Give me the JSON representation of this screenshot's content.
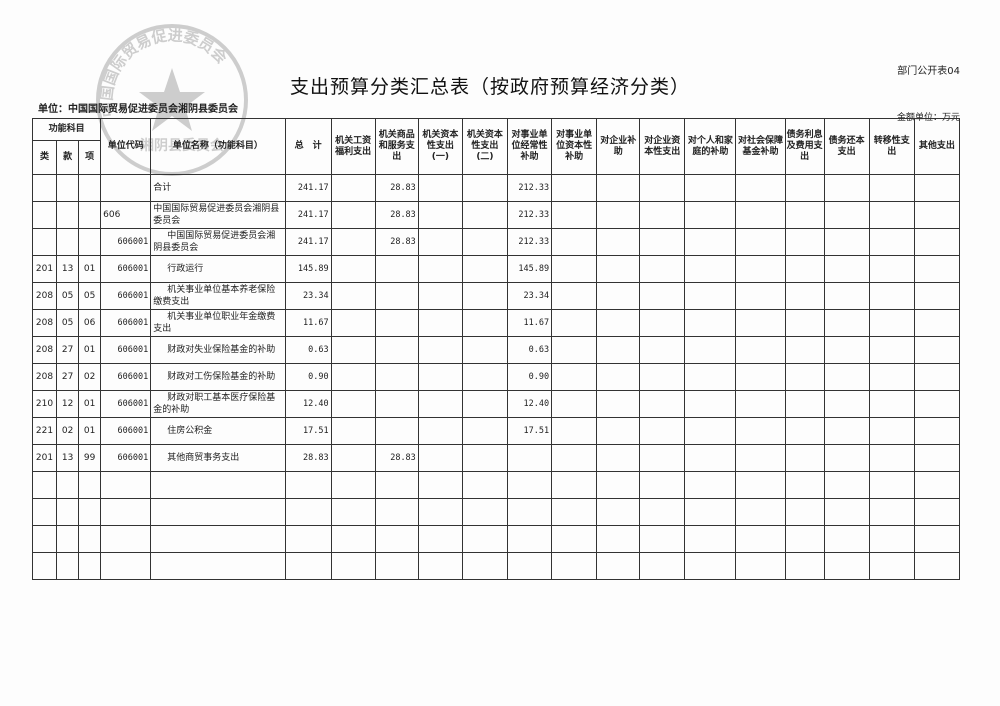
{
  "form_no": "部门公开表04",
  "title": "支出预算分类汇总表（按政府预算经济分类）",
  "unit": "单位：中国国际贸易促进委员会湘阴县委员会",
  "amount_unit": "金额单位：万元",
  "stamp": {
    "text": "中国国际贸易促进委员会湘阴县委员会",
    "color": "#777777"
  },
  "headers": {
    "func": "功能科目",
    "lei": "类",
    "kuan": "款",
    "xiang": "项",
    "code": "单位代码",
    "name": "单位名称（功能科目）",
    "total": "总　计",
    "cols": [
      "机关工资福利支出",
      "机关商品和服务支出",
      "机关资本性支出(一)",
      "机关资本性支出(二)",
      "对事业单位经常性补助",
      "对事业单位资本性补助",
      "对企业补助",
      "对企业资本性支出",
      "对个人和家庭的补助",
      "对社会保障基金补助",
      "债务利息及费用支出",
      "债务还本支出",
      "转移性支出",
      "其他支出"
    ]
  },
  "rows": [
    {
      "lei": "",
      "kuan": "",
      "xiang": "",
      "code": "",
      "name": "合计",
      "total": "241.17",
      "goods": "28.83",
      "shiye": "212.33"
    },
    {
      "lei": "",
      "kuan": "",
      "xiang": "",
      "code": "606",
      "name": "中国国际贸易促进委员会湘阴县委员会",
      "total": "241.17",
      "goods": "28.83",
      "shiye": "212.33"
    },
    {
      "lei": "",
      "kuan": "",
      "xiang": "",
      "code": "606001",
      "name": "中国国际贸易促进委员会湘阴县委员会",
      "total": "241.17",
      "goods": "28.83",
      "shiye": "212.33"
    },
    {
      "lei": "201",
      "kuan": "13",
      "xiang": "01",
      "code": "606001",
      "name": "行政运行",
      "total": "145.89",
      "goods": "",
      "shiye": "145.89"
    },
    {
      "lei": "208",
      "kuan": "05",
      "xiang": "05",
      "code": "606001",
      "name": "机关事业单位基本养老保险缴费支出",
      "total": "23.34",
      "goods": "",
      "shiye": "23.34"
    },
    {
      "lei": "208",
      "kuan": "05",
      "xiang": "06",
      "code": "606001",
      "name": "机关事业单位职业年金缴费支出",
      "total": "11.67",
      "goods": "",
      "shiye": "11.67"
    },
    {
      "lei": "208",
      "kuan": "27",
      "xiang": "01",
      "code": "606001",
      "name": "财政对失业保险基金的补助",
      "total": "0.63",
      "goods": "",
      "shiye": "0.63"
    },
    {
      "lei": "208",
      "kuan": "27",
      "xiang": "02",
      "code": "606001",
      "name": "财政对工伤保险基金的补助",
      "total": "0.90",
      "goods": "",
      "shiye": "0.90"
    },
    {
      "lei": "210",
      "kuan": "12",
      "xiang": "01",
      "code": "606001",
      "name": "财政对职工基本医疗保险基金的补助",
      "total": "12.40",
      "goods": "",
      "shiye": "12.40"
    },
    {
      "lei": "221",
      "kuan": "02",
      "xiang": "01",
      "code": "606001",
      "name": "住房公积金",
      "total": "17.51",
      "goods": "",
      "shiye": "17.51"
    },
    {
      "lei": "201",
      "kuan": "13",
      "xiang": "99",
      "code": "606001",
      "name": "其他商贸事务支出",
      "total": "28.83",
      "goods": "28.83",
      "shiye": ""
    }
  ]
}
